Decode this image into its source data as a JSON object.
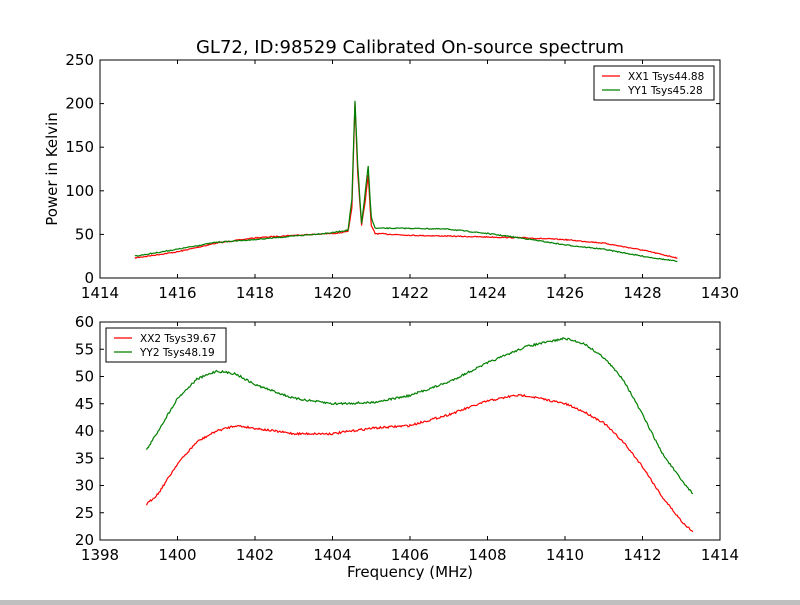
{
  "chart_data": [
    {
      "type": "line",
      "title": "GL72, ID:98529 Calibrated On-source spectrum",
      "xlabel": "",
      "ylabel": "Power in Kelvin",
      "xlim": [
        1414,
        1430
      ],
      "ylim": [
        0,
        250
      ],
      "xticks": [
        1414,
        1416,
        1418,
        1420,
        1422,
        1424,
        1426,
        1428,
        1430
      ],
      "yticks": [
        0,
        50,
        100,
        150,
        200,
        250
      ],
      "legend": "top-right",
      "grid": false,
      "series": [
        {
          "name": "XX1 Tsys44.88",
          "color": "#ff0000",
          "x": [
            1414.9,
            1416,
            1417,
            1418,
            1419,
            1420,
            1420.4,
            1420.5,
            1420.58,
            1420.65,
            1420.75,
            1420.85,
            1420.92,
            1421.0,
            1421.1,
            1422,
            1424,
            1425,
            1426,
            1427,
            1428,
            1428.9
          ],
          "y": [
            23,
            30,
            40,
            46,
            49,
            51,
            53,
            80,
            200,
            120,
            60,
            90,
            118,
            60,
            51,
            49,
            47,
            46,
            44,
            40,
            32,
            23
          ]
        },
        {
          "name": "YY1 Tsys45.28",
          "color": "#008000",
          "x": [
            1414.9,
            1416,
            1417,
            1418,
            1419,
            1420,
            1420.4,
            1420.5,
            1420.58,
            1420.65,
            1420.75,
            1420.85,
            1420.92,
            1421.0,
            1421.1,
            1422,
            1423,
            1424,
            1425,
            1426,
            1427,
            1428,
            1428.9
          ],
          "y": [
            25,
            33,
            41,
            44,
            48,
            52,
            55,
            90,
            203,
            130,
            62,
            100,
            128,
            70,
            57,
            57,
            56,
            51,
            45,
            38,
            33,
            25,
            19
          ]
        }
      ]
    },
    {
      "type": "line",
      "title": "",
      "xlabel": "Frequency (MHz)",
      "ylabel": "",
      "xlim": [
        1398,
        1414
      ],
      "ylim": [
        20,
        60
      ],
      "xticks": [
        1398,
        1400,
        1402,
        1404,
        1406,
        1408,
        1410,
        1412,
        1414
      ],
      "yticks": [
        20,
        25,
        30,
        35,
        40,
        45,
        50,
        55,
        60
      ],
      "legend": "top-left",
      "grid": false,
      "series": [
        {
          "name": "XX2 Tsys39.67",
          "color": "#ff0000",
          "x": [
            1399.2,
            1399.5,
            1400,
            1400.5,
            1401,
            1401.5,
            1402,
            1403,
            1404,
            1405,
            1406,
            1407,
            1408,
            1408.7,
            1409,
            1410,
            1410.5,
            1411,
            1411.5,
            1412,
            1412.5,
            1413,
            1413.3
          ],
          "y": [
            26.5,
            28.5,
            34,
            38,
            40,
            41,
            40.5,
            39.5,
            39.5,
            40.5,
            41,
            43,
            45.5,
            46.5,
            46.5,
            45,
            43.5,
            41.5,
            38,
            33.5,
            28,
            23.5,
            21.5
          ]
        },
        {
          "name": "YY2 Tsys48.19",
          "color": "#008000",
          "x": [
            1399.2,
            1399.5,
            1400,
            1400.5,
            1401,
            1401.5,
            1402,
            1403,
            1404,
            1405,
            1406,
            1407,
            1408,
            1409,
            1410,
            1410.5,
            1411,
            1411.5,
            1412,
            1412.5,
            1413,
            1413.3
          ],
          "y": [
            36.5,
            40,
            46,
            49.5,
            51,
            50.5,
            48.5,
            46,
            45,
            45.2,
            46.5,
            49,
            52.5,
            55.5,
            57,
            56,
            53.5,
            49.5,
            43,
            36,
            31,
            28.5
          ]
        }
      ]
    }
  ]
}
